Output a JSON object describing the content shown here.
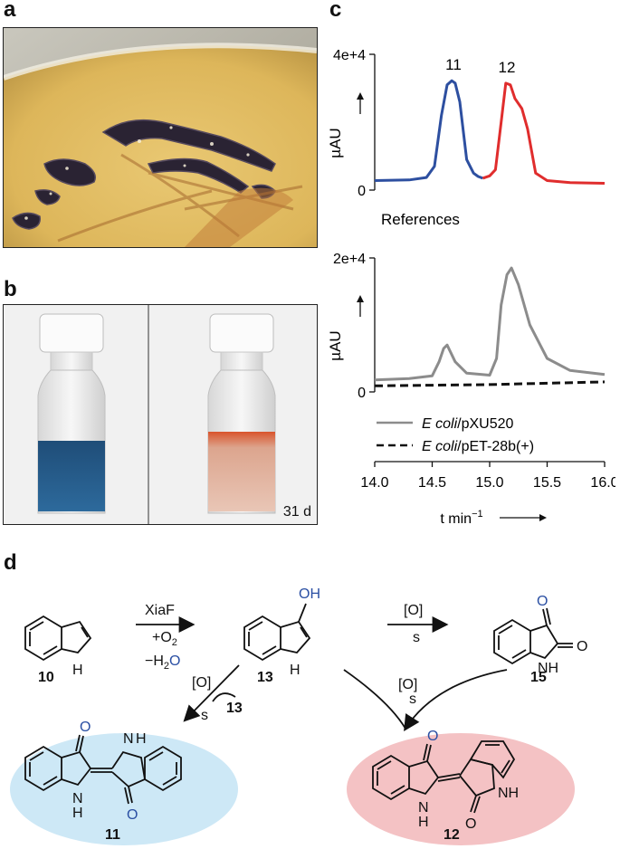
{
  "panels": {
    "a": "a",
    "b": "b",
    "c": "c",
    "d": "d"
  },
  "photo_b": {
    "day_label": "31 d"
  },
  "top_chart": {
    "ytick_top": "4e+4",
    "ytick_zero": "0",
    "ylabel": "µAU",
    "peak_11": "11",
    "peak_12": "12",
    "subtitle": "References"
  },
  "bottom_chart": {
    "ytick_top": "2e+4",
    "ytick_zero": "0",
    "ylabel": "µAU",
    "legend": [
      {
        "italic": "E coli",
        "rest": "/pXU520"
      },
      {
        "italic": "E coli",
        "rest": "/pET-28b(+)"
      }
    ],
    "xticks": [
      "14.0",
      "14.5",
      "15.0",
      "15.5",
      "16.0"
    ],
    "xlabel": "t min",
    "xlabel_exp": "−1"
  },
  "chart_data": [
    {
      "type": "line",
      "title": "",
      "subtitle": "References",
      "ylabel": "µAU",
      "ylim": [
        0,
        40000
      ],
      "xlim": [
        14.0,
        16.0
      ],
      "series": [
        {
          "name": "11",
          "color": "#2d4fa0",
          "x": [
            14.0,
            14.3,
            14.45,
            14.52,
            14.58,
            14.63,
            14.67,
            14.7,
            14.74,
            14.8,
            14.86,
            14.9,
            14.94
          ],
          "y": [
            2800,
            3000,
            3700,
            7000,
            22000,
            31000,
            32200,
            31500,
            26000,
            9000,
            5000,
            4000,
            3500
          ]
        },
        {
          "name": "12",
          "color": "#e02d2d",
          "x": [
            14.94,
            15.0,
            15.05,
            15.1,
            15.14,
            15.18,
            15.22,
            15.28,
            15.33,
            15.4,
            15.5,
            15.7,
            16.0
          ],
          "y": [
            3500,
            4200,
            6000,
            20000,
            31500,
            31000,
            27000,
            24000,
            18000,
            5000,
            2800,
            2200,
            2000
          ]
        }
      ]
    },
    {
      "type": "line",
      "title": "",
      "ylabel": "µAU",
      "ylim": [
        0,
        20000
      ],
      "xlim": [
        14.0,
        16.0
      ],
      "xlabel": "t min−1",
      "series": [
        {
          "name": "E coli/pXU520",
          "color": "#8c8c8c",
          "x": [
            14.0,
            14.3,
            14.5,
            14.56,
            14.6,
            14.63,
            14.7,
            14.8,
            15.0,
            15.06,
            15.1,
            15.15,
            15.19,
            15.25,
            15.35,
            15.5,
            15.7,
            16.0
          ],
          "y": [
            1800,
            2000,
            2400,
            4500,
            6500,
            7000,
            4500,
            2800,
            2500,
            5000,
            13000,
            17500,
            18500,
            16000,
            10000,
            5000,
            3200,
            2600
          ]
        },
        {
          "name": "E coli/pET-28b(+)",
          "color": "#111111",
          "dashed": true,
          "x": [
            14.0,
            14.5,
            15.0,
            15.5,
            16.0
          ],
          "y": [
            900,
            1000,
            1100,
            1300,
            1500
          ]
        }
      ]
    }
  ],
  "scheme": {
    "c10": "10",
    "c13": "13",
    "c15": "15",
    "c11": "11",
    "c12": "12",
    "enzyme": "XiaF",
    "plus_o2": "+O",
    "minus_h2o_a": "−H",
    "minus_h2o_b": "O",
    "sub2": "2",
    "ox1": "[O]",
    "s": "s",
    "ox2": "[O]",
    "ox3": "[O]",
    "ox3_s": "s",
    "s_left": "s",
    "co_13": "13",
    "oh": "OH",
    "o_label": "O",
    "nh": "NH",
    "n": "N",
    "h": "H",
    "colors": {
      "blue_o": "#2a4fa3",
      "blue_ellipse": "#cde8f6",
      "red_ellipse": "#f4c2c4"
    }
  }
}
